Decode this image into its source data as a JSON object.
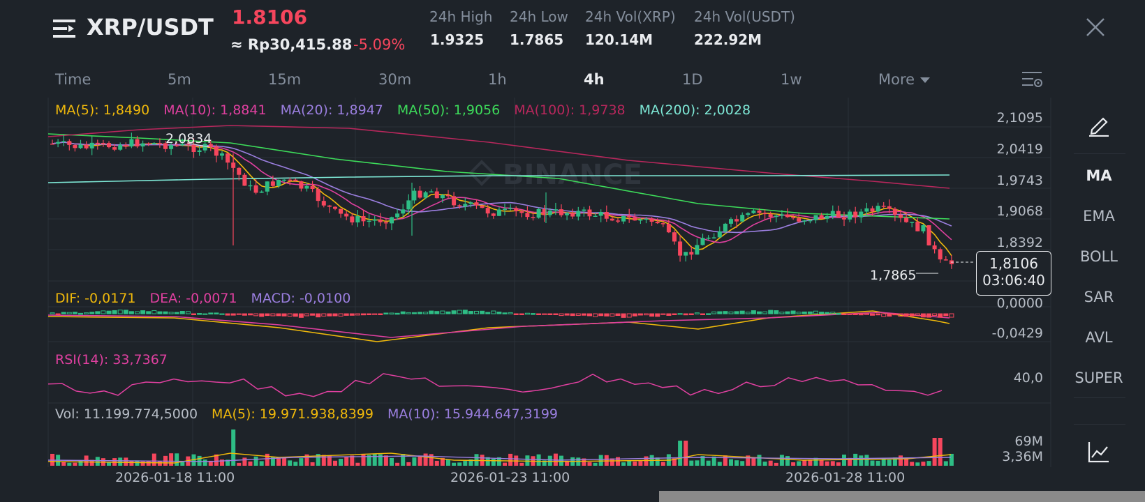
{
  "header": {
    "pair": "XRP/USDT",
    "price": "1.8106",
    "fiat_price": "≈ Rp30,415.88",
    "change": "-5.09%",
    "stats": [
      {
        "label": "24h High",
        "value": "1.9325"
      },
      {
        "label": "24h Low",
        "value": "1.7865"
      },
      {
        "label": "24h Vol(XRP)",
        "value": "120.14M"
      },
      {
        "label": "24h Vol(USDT)",
        "value": "222.92M"
      }
    ]
  },
  "tabs": [
    "Time",
    "5m",
    "15m",
    "30m",
    "1h",
    "4h",
    "1D",
    "1w",
    "More"
  ],
  "active_tab": "4h",
  "watermark": "BINANCE",
  "indicators": {
    "ma": [
      {
        "label": "MA(5): 1,8490",
        "color": "#f0b90b"
      },
      {
        "label": "MA(10): 1,8841",
        "color": "#e040a0"
      },
      {
        "label": "MA(20): 1,8947",
        "color": "#9b7fe0"
      },
      {
        "label": "MA(50): 1,9056",
        "color": "#3ddc5a"
      },
      {
        "label": "MA(100): 1,9738",
        "color": "#b8275c"
      },
      {
        "label": "MA(200): 2,0028",
        "color": "#7ee8d6"
      }
    ],
    "macd": [
      {
        "label": "DIF: -0,0171",
        "color": "#f0b90b"
      },
      {
        "label": "DEA: -0,0071",
        "color": "#e040a0"
      },
      {
        "label": "MACD: -0,0100",
        "color": "#9b7fe0"
      }
    ],
    "rsi": {
      "label": "RSI(14): 33,7367",
      "color": "#e040a0"
    },
    "vol": [
      {
        "label": "Vol: 11.199.774,5000",
        "color": "#b7bdc6"
      },
      {
        "label": "MA(5): 19.971.938,8399",
        "color": "#f0b90b"
      },
      {
        "label": "MA(10): 15.944.647,3199",
        "color": "#9b7fe0"
      }
    ]
  },
  "price_axis": [
    "2,1095",
    "2,0419",
    "1,9743",
    "1,9068",
    "1,8392"
  ],
  "macd_axis": [
    "0,0000",
    "-0,0429"
  ],
  "rsi_axis": [
    "40,0"
  ],
  "vol_axis": [
    "69M",
    "3,36M"
  ],
  "high_label": "2,0834",
  "low_label": "1,7865",
  "current_price_tag": {
    "price": "1,8106",
    "countdown": "03:06:40"
  },
  "dates": [
    "2026-01-18 11:00",
    "2026-01-23 11:00",
    "2026-01-28 11:00"
  ],
  "sidebar": [
    "MA",
    "EMA",
    "BOLL",
    "SAR",
    "AVL",
    "SUPER"
  ],
  "sidebar_active": "MA",
  "colors": {
    "up": "#2ebd85",
    "down": "#f6465d",
    "bg": "#1e2329",
    "grid": "#2b3139"
  },
  "icons": [
    "menu-icon",
    "close-icon",
    "chart-settings-icon",
    "pencil-icon",
    "line-chart-icon"
  ]
}
